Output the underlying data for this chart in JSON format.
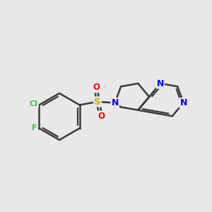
{
  "background_color": "#e8e8e8",
  "bond_color": "#3a3a3a",
  "bond_width": 1.8,
  "atom_colors": {
    "N_pyrimidine": "#0000ee",
    "N_piperidine": "#0000ee",
    "S": "#ccaa00",
    "O": "#ee0000",
    "Cl": "#33cc33",
    "F": "#33cc33"
  },
  "figsize": [
    3.0,
    3.0
  ],
  "dpi": 100,
  "xlim": [
    0.0,
    10.0
  ],
  "ylim": [
    1.5,
    8.5
  ]
}
